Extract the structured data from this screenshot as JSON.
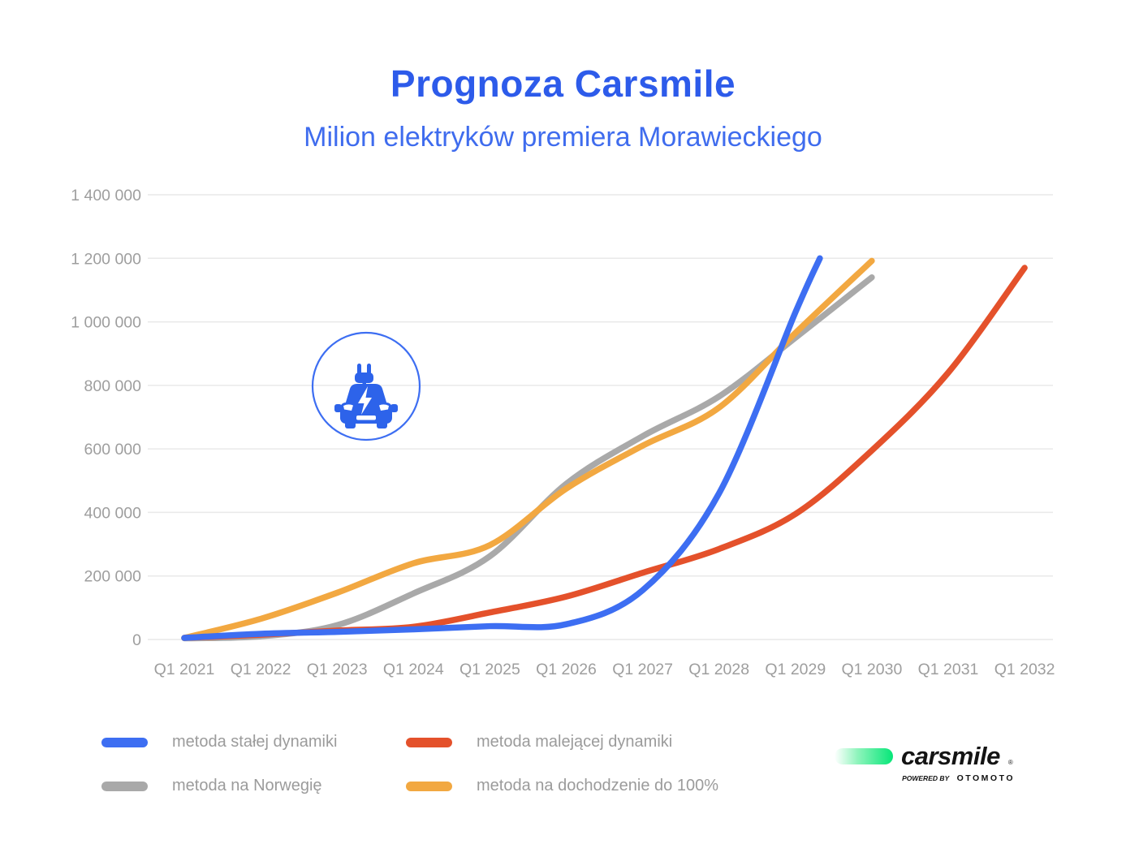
{
  "header": {
    "title": "Prognoza Carsmile",
    "subtitle": "Milion elektryków premiera Morawieckiego"
  },
  "colors": {
    "title": "#2d5bea",
    "subtitle": "#3f6cee",
    "blue_line": "#3d6ef2",
    "red_line": "#e4512b",
    "gray_line": "#a9a9a9",
    "orange_line": "#f2a841",
    "grid": "#e9e9e9",
    "tick_text": "#9e9e9e",
    "logo_green": "#06e678"
  },
  "chart_data": {
    "type": "line",
    "title": "Prognoza Carsmile",
    "subtitle": "Milion elektryków premiera Morawieckiego",
    "x_categories": [
      "Q1 2021",
      "Q1 2022",
      "Q1 2023",
      "Q1 2024",
      "Q1 2025",
      "Q1 2026",
      "Q1 2027",
      "Q1 2028",
      "Q1 2029",
      "Q1 2030",
      "Q1 2031",
      "Q1 2032"
    ],
    "ylim": [
      0,
      1400000
    ],
    "y_ticks": [
      {
        "value": 0,
        "label": "0"
      },
      {
        "value": 200000,
        "label": "200 000"
      },
      {
        "value": 400000,
        "label": "400 000"
      },
      {
        "value": 600000,
        "label": "600 000"
      },
      {
        "value": 800000,
        "label": "800 000"
      },
      {
        "value": 1000000,
        "label": "1 000 000"
      },
      {
        "value": 1200000,
        "label": "1 200 000"
      },
      {
        "value": 1400000,
        "label": "1 400 000"
      }
    ],
    "grid": "horizontal",
    "legend_position": "bottom",
    "series": [
      {
        "key": "metoda-na-norwegie",
        "name": "metoda na Norwegię",
        "color": "#a9a9a9",
        "x": [
          0,
          1,
          2,
          3,
          4,
          5,
          6,
          7,
          8,
          9
        ],
        "values": [
          3000,
          10000,
          45000,
          145000,
          262000,
          490000,
          640000,
          765000,
          950000,
          1140000
        ]
      },
      {
        "key": "metoda-na-dochodzenie-do-100",
        "name": "metoda na dochodzenie do 100%",
        "color": "#f2a841",
        "x": [
          0,
          1,
          2,
          3,
          4,
          5,
          6,
          7,
          8,
          9
        ],
        "values": [
          5000,
          65000,
          147000,
          240000,
          297000,
          475000,
          610000,
          730000,
          965000,
          1192000
        ]
      },
      {
        "key": "metoda-malejacej-dynamiki",
        "name": "metoda malejącej dynamiki",
        "color": "#e4512b",
        "x": [
          0,
          1,
          2,
          3,
          4,
          5,
          6,
          7,
          8,
          9,
          10,
          11
        ],
        "values": [
          5000,
          15000,
          28000,
          40000,
          85000,
          135000,
          210000,
          285000,
          395000,
          595000,
          840000,
          1170000
        ]
      },
      {
        "key": "metoda-stalej-dynamiki",
        "name": "metoda stałej dynamiki",
        "color": "#3d6ef2",
        "x": [
          0,
          1,
          2,
          3,
          4,
          5,
          6,
          7,
          8,
          8.32
        ],
        "values": [
          5000,
          18000,
          24000,
          32000,
          42000,
          48000,
          155000,
          460000,
          1030000,
          1200000
        ]
      }
    ]
  },
  "legend": {
    "items": [
      {
        "label": "metoda stałej dynamiki",
        "color": "#3d6ef2"
      },
      {
        "label": "metoda malejącej dynamiki",
        "color": "#e4512b"
      },
      {
        "label": "metoda na Norwegię",
        "color": "#a9a9a9"
      },
      {
        "label": "metoda na dochodzenie do 100%",
        "color": "#f2a841"
      }
    ]
  },
  "badge": {
    "icon": "ev-car-plug-icon"
  },
  "logo": {
    "brand": "carsmile",
    "registered_mark": "®",
    "tagline_prefix": "POWERED BY",
    "tagline_brand": "OTOMOTO"
  }
}
